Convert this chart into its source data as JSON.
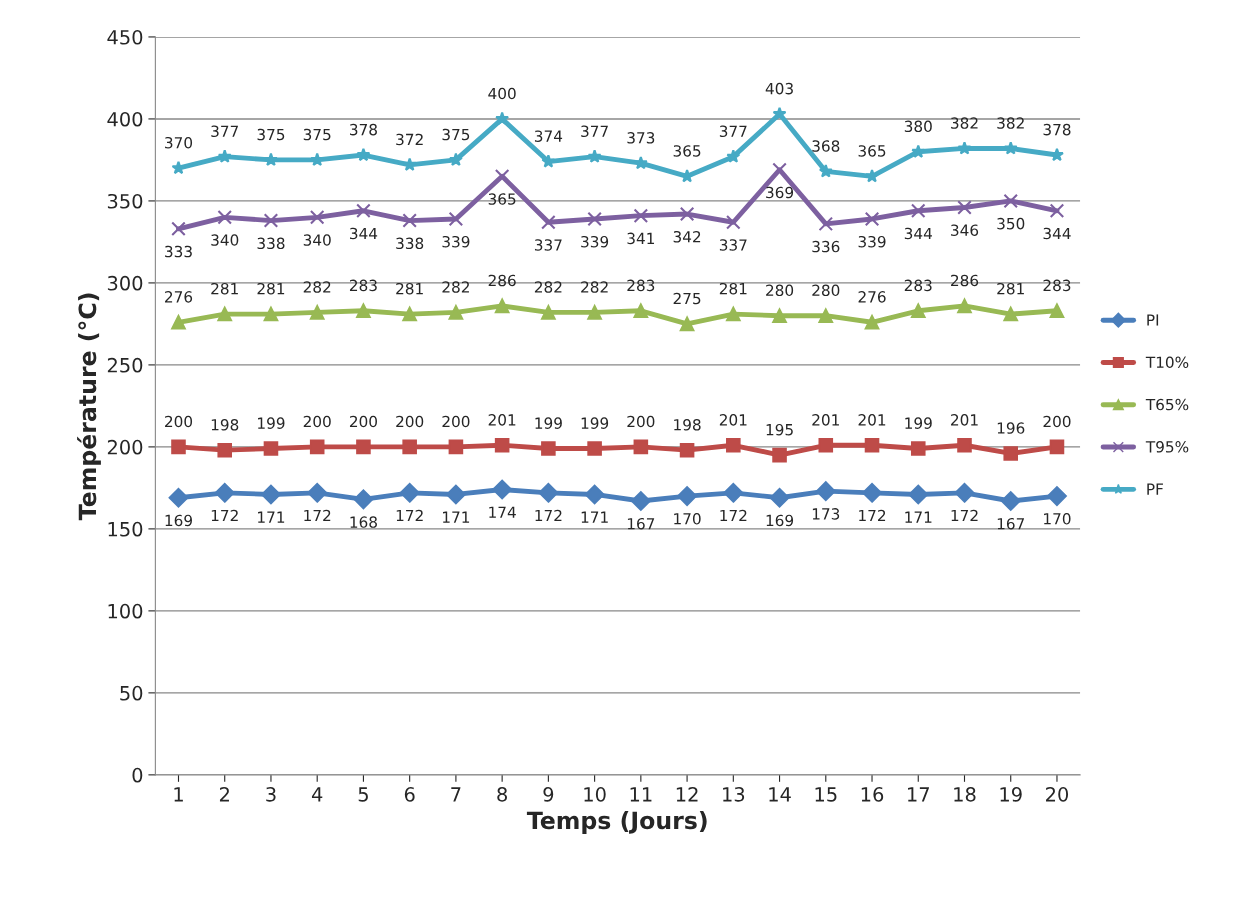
{
  "chart_data": {
    "type": "line",
    "xlabel": "Temps (Jours)",
    "ylabel": "Température (°C)",
    "categories": [
      "1",
      "2",
      "3",
      "4",
      "5",
      "6",
      "7",
      "8",
      "9",
      "10",
      "11",
      "12",
      "13",
      "14",
      "15",
      "16",
      "17",
      "18",
      "19",
      "20"
    ],
    "series": [
      {
        "name": "PI",
        "color": "#4a7ebb",
        "marker": "diamond",
        "values": [
          169,
          172,
          171,
          172,
          168,
          172,
          171,
          174,
          172,
          171,
          167,
          170,
          172,
          169,
          173,
          172,
          171,
          172,
          167,
          170
        ]
      },
      {
        "name": "T10%",
        "color": "#be4b48",
        "marker": "square",
        "values": [
          200,
          198,
          199,
          200,
          200,
          200,
          200,
          201,
          199,
          199,
          200,
          198,
          201,
          195,
          201,
          201,
          199,
          201,
          196,
          200
        ]
      },
      {
        "name": "T65%",
        "color": "#98b954",
        "marker": "triangle",
        "values": [
          276,
          281,
          281,
          282,
          283,
          281,
          282,
          286,
          282,
          282,
          283,
          275,
          281,
          280,
          280,
          276,
          283,
          286,
          281,
          283
        ]
      },
      {
        "name": "T95%",
        "color": "#7d60a0",
        "marker": "cross",
        "values": [
          333,
          340,
          338,
          340,
          344,
          338,
          339,
          365,
          337,
          339,
          341,
          342,
          337,
          369,
          336,
          339,
          344,
          346,
          350,
          344
        ]
      },
      {
        "name": "PF",
        "color": "#46aac5",
        "marker": "star",
        "values": [
          370,
          377,
          375,
          375,
          378,
          372,
          375,
          400,
          374,
          377,
          373,
          365,
          377,
          403,
          368,
          365,
          380,
          382,
          382,
          378
        ]
      }
    ],
    "ylim": [
      0,
      450
    ],
    "yticks": [
      0,
      50,
      100,
      150,
      200,
      250,
      300,
      350,
      400,
      450
    ],
    "grid": "y",
    "legend": "right",
    "data_labels": true,
    "line_style": "solid"
  }
}
